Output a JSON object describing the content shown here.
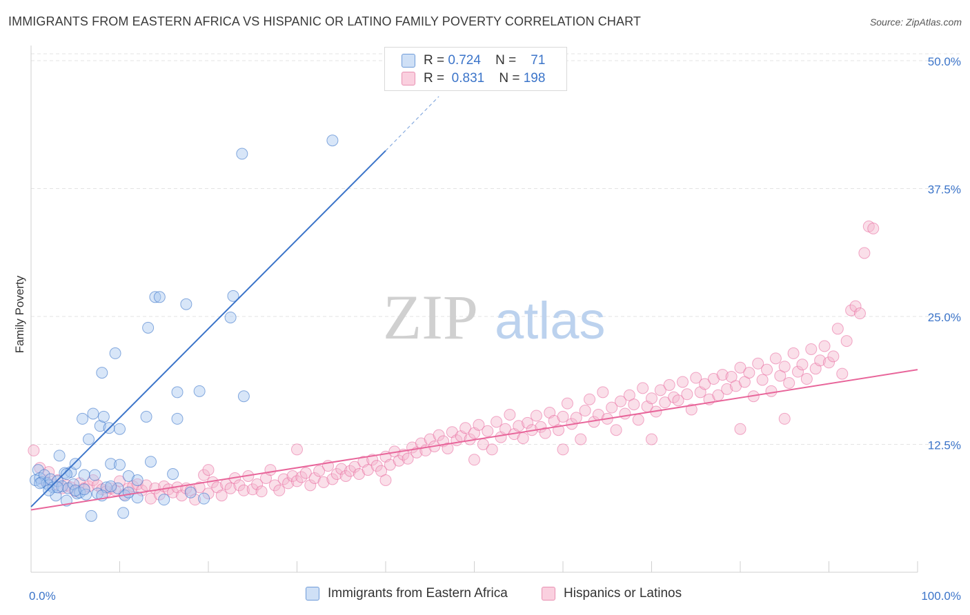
{
  "title": "IMMIGRANTS FROM EASTERN AFRICA VS HISPANIC OR LATINO FAMILY POVERTY CORRELATION CHART",
  "source": "Source: ZipAtlas.com",
  "watermark": {
    "zip": "ZIP",
    "atlas": "atlas"
  },
  "colors": {
    "blue": "#3b74c9",
    "blue_fill": "#a8c8f0",
    "pink": "#e8659a",
    "pink_fill": "#f5b9cf",
    "grid": "#e3e3e3",
    "axis_label": "#3b74c9"
  },
  "legend": {
    "rows": [
      {
        "r_label": "R =",
        "r_value": "0.724",
        "n_label": "N =",
        "n_value": "71"
      },
      {
        "r_label": "R =",
        "r_value": "0.831",
        "n_label": "N =",
        "n_value": "198"
      }
    ]
  },
  "bottom_legend": {
    "series1": "Immigrants from Eastern Africa",
    "series2": "Hispanics or Latinos"
  },
  "chart_data": {
    "type": "scatter",
    "title": "IMMIGRANTS FROM EASTERN AFRICA VS HISPANIC OR LATINO FAMILY POVERTY CORRELATION CHART",
    "xlabel": "",
    "ylabel": "Family Poverty",
    "xlim": [
      0,
      100
    ],
    "ylim": [
      0,
      50
    ],
    "x_tick_labels": [
      "0.0%",
      "100.0%"
    ],
    "y_ticks": [
      12.5,
      25.0,
      37.5,
      50.0
    ],
    "y_tick_labels": [
      "12.5%",
      "25.0%",
      "37.5%",
      "50.0%"
    ],
    "series": [
      {
        "name": "Immigrants from Eastern Africa",
        "color": "#3b74c9",
        "trend": {
          "x0": 0,
          "y0": 6.4,
          "x1": 40,
          "y1": 41.2,
          "dash_to_x": 46,
          "dash_to_y": 46.5
        },
        "points": [
          [
            0.5,
            9.0
          ],
          [
            0.8,
            10.0
          ],
          [
            1.0,
            9.2
          ],
          [
            1.2,
            8.8
          ],
          [
            1.5,
            9.5
          ],
          [
            1.8,
            8.7
          ],
          [
            2.0,
            8.5
          ],
          [
            2.2,
            9.1
          ],
          [
            2.5,
            8.3
          ],
          [
            2.8,
            7.5
          ],
          [
            3.0,
            8.9
          ],
          [
            3.2,
            11.4
          ],
          [
            3.5,
            8.4
          ],
          [
            3.8,
            9.7
          ],
          [
            4.0,
            7.0
          ],
          [
            4.2,
            8.2
          ],
          [
            4.5,
            9.8
          ],
          [
            4.8,
            8.6
          ],
          [
            5.0,
            10.6
          ],
          [
            5.2,
            7.7
          ],
          [
            5.5,
            7.8
          ],
          [
            5.8,
            15.0
          ],
          [
            6.0,
            9.5
          ],
          [
            6.2,
            7.6
          ],
          [
            6.5,
            13.0
          ],
          [
            6.8,
            5.5
          ],
          [
            7.0,
            15.5
          ],
          [
            7.2,
            9.5
          ],
          [
            7.5,
            7.7
          ],
          [
            7.8,
            14.3
          ],
          [
            8.0,
            19.5
          ],
          [
            8.2,
            15.2
          ],
          [
            8.5,
            8.3
          ],
          [
            8.8,
            14.1
          ],
          [
            9.0,
            10.6
          ],
          [
            9.5,
            21.4
          ],
          [
            9.8,
            8.2
          ],
          [
            10.0,
            14.0
          ],
          [
            10.4,
            5.8
          ],
          [
            10.6,
            7.5
          ],
          [
            11.0,
            9.4
          ],
          [
            12.0,
            7.3
          ],
          [
            13.0,
            15.2
          ],
          [
            13.2,
            23.9
          ],
          [
            13.5,
            10.8
          ],
          [
            14.0,
            26.9
          ],
          [
            14.5,
            26.9
          ],
          [
            16.0,
            9.6
          ],
          [
            16.5,
            15.0
          ],
          [
            16.5,
            17.6
          ],
          [
            17.5,
            26.2
          ],
          [
            18.0,
            7.8
          ],
          [
            19.0,
            17.7
          ],
          [
            19.5,
            7.2
          ],
          [
            22.5,
            24.9
          ],
          [
            22.8,
            27.0
          ],
          [
            23.8,
            40.9
          ],
          [
            24.0,
            17.2
          ],
          [
            34.0,
            42.2
          ],
          [
            1.0,
            8.7
          ],
          [
            2.0,
            8.0
          ],
          [
            3.0,
            8.3
          ],
          [
            4.0,
            9.6
          ],
          [
            5.0,
            8.0
          ],
          [
            6.0,
            8.1
          ],
          [
            8.0,
            7.5
          ],
          [
            9.0,
            8.4
          ],
          [
            10.0,
            10.5
          ],
          [
            11.0,
            7.8
          ],
          [
            12.0,
            9.0
          ],
          [
            15.0,
            7.1
          ]
        ]
      },
      {
        "name": "Hispanics or Latinos",
        "color": "#e8659a",
        "trend": {
          "x0": 0,
          "y0": 6.1,
          "x1": 100,
          "y1": 19.8
        },
        "points": [
          [
            0.3,
            11.9
          ],
          [
            1.0,
            10.2
          ],
          [
            1.5,
            9.0
          ],
          [
            2.0,
            9.8
          ],
          [
            2.5,
            8.6
          ],
          [
            3.0,
            9.0
          ],
          [
            3.5,
            8.2
          ],
          [
            4.0,
            8.5
          ],
          [
            4.5,
            8.3
          ],
          [
            5.0,
            7.9
          ],
          [
            5.5,
            8.7
          ],
          [
            6.0,
            8.2
          ],
          [
            6.5,
            8.4
          ],
          [
            7.0,
            9.0
          ],
          [
            7.5,
            8.5
          ],
          [
            8.0,
            8.1
          ],
          [
            8.5,
            7.9
          ],
          [
            9.0,
            8.2
          ],
          [
            9.5,
            8.0
          ],
          [
            10.0,
            8.9
          ],
          [
            10.5,
            7.6
          ],
          [
            11.0,
            8.2
          ],
          [
            11.5,
            8.4
          ],
          [
            12.0,
            8.6
          ],
          [
            12.5,
            8.0
          ],
          [
            13.0,
            8.5
          ],
          [
            13.5,
            7.2
          ],
          [
            14.0,
            8.2
          ],
          [
            14.5,
            7.6
          ],
          [
            15.0,
            8.4
          ],
          [
            15.5,
            8.1
          ],
          [
            16.0,
            7.8
          ],
          [
            16.5,
            8.3
          ],
          [
            17.0,
            7.5
          ],
          [
            17.5,
            8.2
          ],
          [
            18.0,
            8.0
          ],
          [
            18.5,
            7.1
          ],
          [
            19.0,
            8.3
          ],
          [
            19.5,
            9.5
          ],
          [
            20.0,
            7.7
          ],
          [
            20.5,
            8.8
          ],
          [
            21.0,
            8.3
          ],
          [
            21.5,
            7.5
          ],
          [
            22.0,
            8.6
          ],
          [
            22.5,
            8.2
          ],
          [
            23.0,
            9.2
          ],
          [
            23.5,
            8.5
          ],
          [
            24.0,
            8.0
          ],
          [
            24.5,
            9.4
          ],
          [
            25.0,
            8.1
          ],
          [
            25.5,
            8.6
          ],
          [
            26.0,
            7.9
          ],
          [
            26.5,
            9.2
          ],
          [
            27.0,
            10.0
          ],
          [
            27.5,
            8.5
          ],
          [
            28.0,
            8.0
          ],
          [
            28.5,
            9.1
          ],
          [
            29.0,
            8.7
          ],
          [
            29.5,
            9.4
          ],
          [
            30.0,
            8.9
          ],
          [
            30.5,
            9.3
          ],
          [
            31.0,
            9.7
          ],
          [
            31.5,
            8.5
          ],
          [
            32.0,
            9.2
          ],
          [
            32.5,
            9.9
          ],
          [
            33.0,
            8.8
          ],
          [
            33.5,
            10.4
          ],
          [
            34.0,
            9.1
          ],
          [
            34.5,
            9.6
          ],
          [
            35.0,
            10.1
          ],
          [
            35.5,
            9.4
          ],
          [
            36.0,
            9.9
          ],
          [
            36.5,
            10.3
          ],
          [
            37.0,
            9.6
          ],
          [
            37.5,
            10.8
          ],
          [
            38.0,
            10.0
          ],
          [
            38.5,
            11.0
          ],
          [
            39.0,
            10.4
          ],
          [
            39.5,
            9.9
          ],
          [
            40.0,
            11.3
          ],
          [
            40.5,
            10.5
          ],
          [
            41.0,
            11.8
          ],
          [
            41.5,
            10.9
          ],
          [
            42.0,
            11.5
          ],
          [
            42.5,
            11.1
          ],
          [
            43.0,
            12.2
          ],
          [
            43.5,
            11.7
          ],
          [
            44.0,
            12.6
          ],
          [
            44.5,
            11.9
          ],
          [
            45.0,
            13.0
          ],
          [
            45.5,
            12.3
          ],
          [
            46.0,
            13.4
          ],
          [
            46.5,
            12.8
          ],
          [
            47.0,
            12.1
          ],
          [
            47.5,
            13.7
          ],
          [
            48.0,
            12.9
          ],
          [
            48.5,
            13.3
          ],
          [
            49.0,
            14.1
          ],
          [
            49.5,
            13.0
          ],
          [
            50.0,
            13.6
          ],
          [
            50.5,
            14.4
          ],
          [
            51.0,
            12.5
          ],
          [
            51.5,
            13.8
          ],
          [
            52.0,
            12.0
          ],
          [
            52.5,
            14.7
          ],
          [
            53.0,
            13.2
          ],
          [
            53.5,
            14.0
          ],
          [
            54.0,
            15.4
          ],
          [
            54.5,
            13.5
          ],
          [
            55.0,
            14.3
          ],
          [
            55.5,
            13.1
          ],
          [
            56.0,
            14.6
          ],
          [
            56.5,
            13.9
          ],
          [
            57.0,
            15.3
          ],
          [
            57.5,
            14.2
          ],
          [
            58.0,
            13.6
          ],
          [
            58.5,
            15.6
          ],
          [
            59.0,
            14.8
          ],
          [
            59.5,
            13.9
          ],
          [
            60.0,
            15.2
          ],
          [
            60.5,
            16.5
          ],
          [
            61.0,
            14.5
          ],
          [
            61.5,
            15.1
          ],
          [
            62.0,
            13.0
          ],
          [
            62.5,
            15.8
          ],
          [
            63.0,
            16.9
          ],
          [
            63.5,
            14.7
          ],
          [
            64.0,
            15.4
          ],
          [
            64.5,
            17.6
          ],
          [
            65.0,
            15.0
          ],
          [
            65.5,
            16.1
          ],
          [
            66.0,
            13.9
          ],
          [
            66.5,
            16.7
          ],
          [
            67.0,
            15.5
          ],
          [
            67.5,
            17.3
          ],
          [
            68.0,
            16.4
          ],
          [
            68.5,
            14.9
          ],
          [
            69.0,
            18.0
          ],
          [
            69.5,
            16.2
          ],
          [
            70.0,
            17.0
          ],
          [
            70.5,
            15.7
          ],
          [
            71.0,
            17.8
          ],
          [
            71.5,
            16.6
          ],
          [
            72.0,
            18.3
          ],
          [
            72.5,
            17.1
          ],
          [
            73.0,
            16.8
          ],
          [
            73.5,
            18.6
          ],
          [
            74.0,
            17.4
          ],
          [
            74.5,
            15.9
          ],
          [
            75.0,
            19.0
          ],
          [
            75.5,
            17.6
          ],
          [
            76.0,
            18.4
          ],
          [
            76.5,
            16.9
          ],
          [
            77.0,
            18.9
          ],
          [
            77.5,
            17.3
          ],
          [
            78.0,
            19.3
          ],
          [
            78.5,
            17.9
          ],
          [
            79.0,
            19.1
          ],
          [
            79.5,
            18.2
          ],
          [
            80.0,
            20.0
          ],
          [
            80.5,
            18.6
          ],
          [
            81.0,
            19.5
          ],
          [
            81.5,
            17.2
          ],
          [
            82.0,
            20.4
          ],
          [
            82.5,
            18.8
          ],
          [
            83.0,
            19.8
          ],
          [
            83.5,
            17.7
          ],
          [
            84.0,
            20.9
          ],
          [
            84.5,
            19.2
          ],
          [
            85.0,
            20.1
          ],
          [
            85.5,
            18.5
          ],
          [
            86.0,
            21.4
          ],
          [
            86.5,
            19.6
          ],
          [
            87.0,
            20.3
          ],
          [
            87.5,
            18.9
          ],
          [
            88.0,
            21.8
          ],
          [
            88.5,
            19.9
          ],
          [
            89.0,
            20.7
          ],
          [
            89.5,
            22.1
          ],
          [
            90.0,
            20.5
          ],
          [
            90.5,
            21.1
          ],
          [
            91.0,
            23.8
          ],
          [
            91.5,
            19.4
          ],
          [
            92.0,
            22.6
          ],
          [
            92.5,
            25.6
          ],
          [
            93.0,
            26.0
          ],
          [
            93.5,
            25.3
          ],
          [
            94.0,
            31.2
          ],
          [
            94.5,
            33.8
          ],
          [
            95.0,
            33.6
          ],
          [
            20.0,
            10.0
          ],
          [
            30.0,
            12.0
          ],
          [
            40.0,
            9.0
          ],
          [
            50.0,
            11.0
          ],
          [
            60.0,
            12.0
          ],
          [
            70.0,
            13.0
          ],
          [
            80.0,
            14.0
          ],
          [
            85.0,
            15.0
          ]
        ]
      }
    ]
  }
}
